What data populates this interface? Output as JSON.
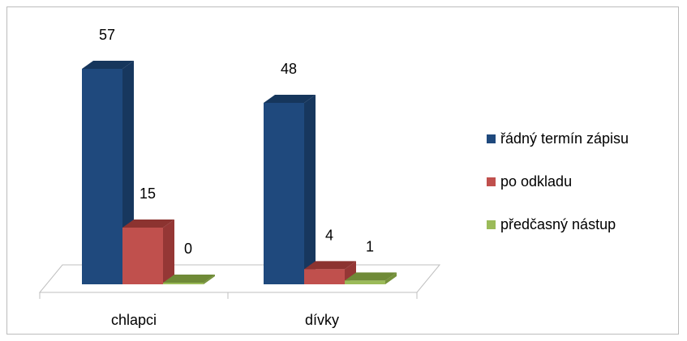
{
  "chart_data": {
    "type": "bar",
    "style": "3d-clustered-column",
    "categories": [
      "chlapci",
      "dívky"
    ],
    "series": [
      {
        "name": "řádný termín zápisu",
        "values": [
          57,
          48
        ],
        "color": "#1f497d",
        "side_color": "#17375e",
        "top_color": "#16365c"
      },
      {
        "name": "po odkladu",
        "values": [
          15,
          4
        ],
        "color": "#c0504d",
        "side_color": "#953735",
        "top_color": "#8c3330"
      },
      {
        "name": "předčasný nástup",
        "values": [
          0,
          1
        ],
        "color": "#9bbb59",
        "side_color": "#76923c",
        "top_color": "#6f8a37"
      }
    ],
    "ylim": [
      0,
      57
    ],
    "data_labels": true,
    "legend_position": "right",
    "grid": false
  }
}
